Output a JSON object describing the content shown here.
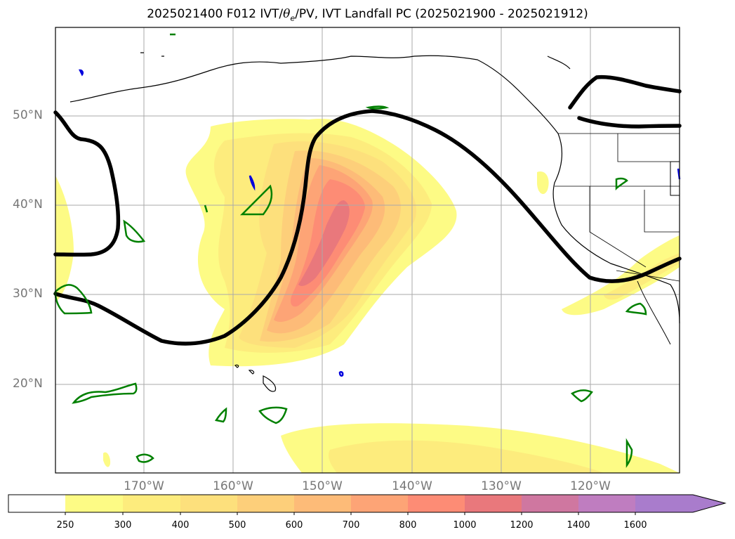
{
  "title": {
    "prefix": "2025021400 F012 IVT/",
    "theta": "θ",
    "theta_sub": "e",
    "suffix": "/PV, IVT Landfall PC (2025021900 - 2025021912)"
  },
  "lat_labels": [
    "50°N",
    "40°N",
    "30°N",
    "20°N"
  ],
  "lon_labels": [
    "170°W",
    "160°W",
    "150°W",
    "140°W",
    "130°W",
    "120°W"
  ],
  "colorbar": {
    "ticks": [
      "250",
      "300",
      "400",
      "500",
      "600",
      "700",
      "800",
      "1000",
      "1200",
      "1400",
      "1600"
    ],
    "colors": [
      "#ffffff",
      "#fdfb85",
      "#fdec7d",
      "#fde07c",
      "#fdcf7a",
      "#fdbb78",
      "#fda476",
      "#fd8c75",
      "#e9787c",
      "#cf77a0",
      "#bf7dc0",
      "#a97ccc"
    ]
  },
  "legend_colors": {
    "theta_e_contour": "#000000",
    "pv_contour_pos": "#008000",
    "pv_contour_neg": "#0000dd",
    "coastline": "#000000",
    "gridline": "#aaaaaa"
  }
}
